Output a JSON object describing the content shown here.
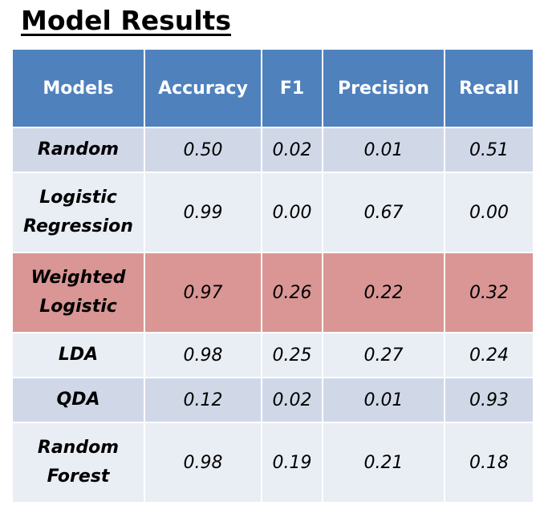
{
  "title": "Model Results",
  "table": {
    "headers": [
      "Models",
      "Accuracy",
      "F1",
      "Precision",
      "Recall"
    ],
    "rows": [
      {
        "model": "Random",
        "accuracy": "0.50",
        "f1": "0.02",
        "precision": "0.01",
        "recall": "0.51"
      },
      {
        "model": "Logistic Regression",
        "accuracy": "0.99",
        "f1": "0.00",
        "precision": "0.67",
        "recall": "0.00"
      },
      {
        "model": "Weighted Logistic",
        "accuracy": "0.97",
        "f1": "0.26",
        "precision": "0.22",
        "recall": "0.32"
      },
      {
        "model": "LDA",
        "accuracy": "0.98",
        "f1": "0.25",
        "precision": "0.27",
        "recall": "0.24"
      },
      {
        "model": "QDA",
        "accuracy": "0.12",
        "f1": "0.02",
        "precision": "0.01",
        "recall": "0.93"
      },
      {
        "model": "Random Forest",
        "accuracy": "0.98",
        "f1": "0.19",
        "precision": "0.21",
        "recall": "0.18"
      }
    ]
  },
  "colors": {
    "header": "#4f81bd",
    "band_a": "#d0d8e8",
    "band_b": "#e9edf4",
    "highlight": "#d99694"
  }
}
